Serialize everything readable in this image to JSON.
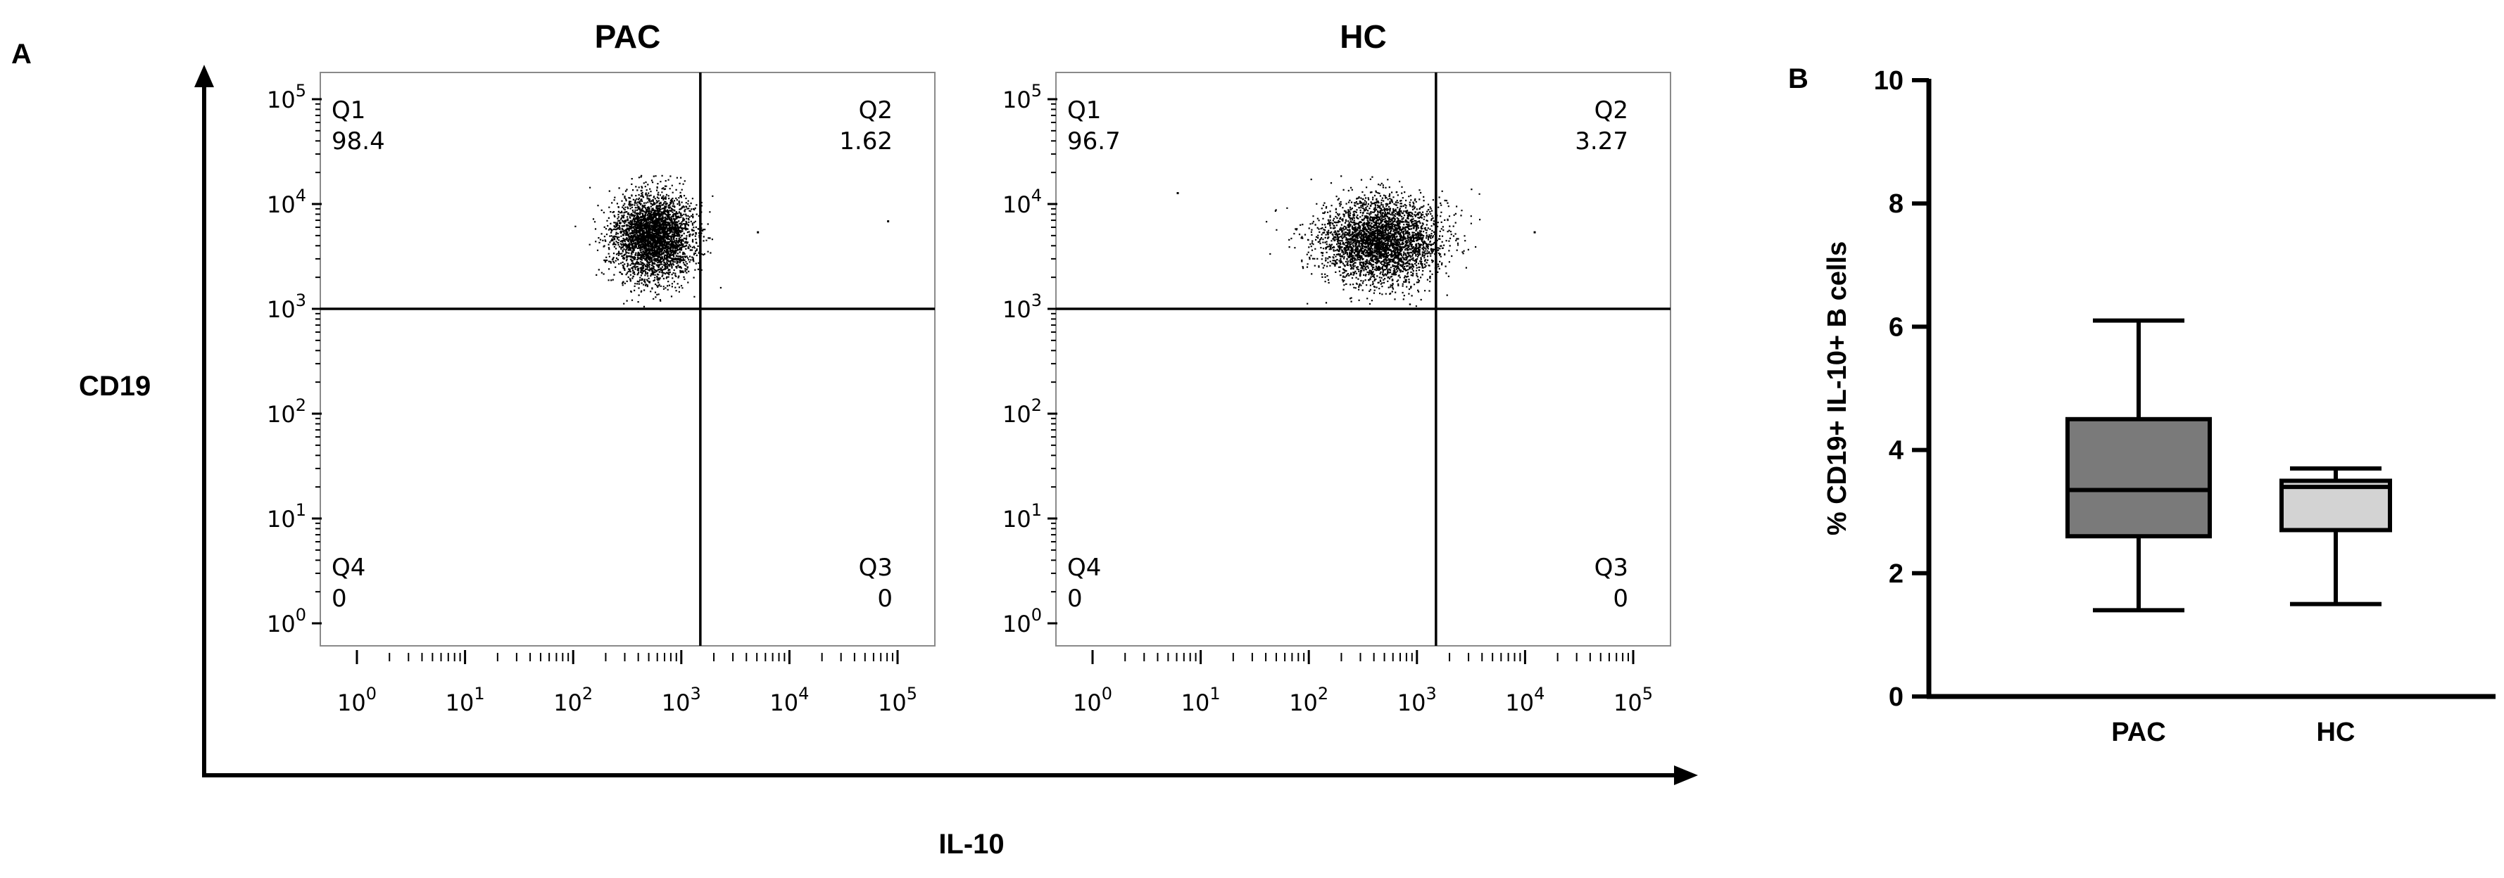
{
  "panels": {
    "a_label": "A",
    "b_label": "B",
    "shared_y_label": "CD19",
    "shared_x_label": "IL-10"
  },
  "chart_data": [
    {
      "type": "scatter",
      "title": "PAC",
      "xscale": "log",
      "yscale": "log",
      "xlim": [
        1,
        100000
      ],
      "ylim": [
        1,
        100000
      ],
      "x_ticks": [
        "10^0",
        "10^1",
        "10^2",
        "10^3",
        "10^4",
        "10^5"
      ],
      "y_ticks": [
        "10^0",
        "10^1",
        "10^2",
        "10^3",
        "10^4",
        "10^5"
      ],
      "gate": {
        "x": 1500,
        "y": 1000
      },
      "quadrants": [
        {
          "name": "Q1",
          "value": "98.4",
          "position": "top-left"
        },
        {
          "name": "Q2",
          "value": "1.62",
          "position": "top-right"
        },
        {
          "name": "Q3",
          "value": "0",
          "position": "bottom-right"
        },
        {
          "name": "Q4",
          "value": "0",
          "position": "bottom-left"
        }
      ],
      "population": {
        "x_center": 550,
        "y_center": 5000,
        "x_spread_decades": 0.18,
        "y_spread_decades": 0.2,
        "events": 3500,
        "outliers": [
          [
            80000,
            7000
          ],
          [
            5000,
            5500
          ]
        ]
      }
    },
    {
      "type": "scatter",
      "title": "HC",
      "xscale": "log",
      "yscale": "log",
      "xlim": [
        1,
        100000
      ],
      "ylim": [
        1,
        100000
      ],
      "x_ticks": [
        "10^0",
        "10^1",
        "10^2",
        "10^3",
        "10^4",
        "10^5"
      ],
      "y_ticks": [
        "10^0",
        "10^1",
        "10^2",
        "10^3",
        "10^4",
        "10^5"
      ],
      "gate": {
        "x": 1500,
        "y": 1000
      },
      "quadrants": [
        {
          "name": "Q1",
          "value": "96.7",
          "position": "top-left"
        },
        {
          "name": "Q2",
          "value": "3.27",
          "position": "top-right"
        },
        {
          "name": "Q3",
          "value": "0",
          "position": "bottom-right"
        },
        {
          "name": "Q4",
          "value": "0",
          "position": "bottom-left"
        }
      ],
      "population": {
        "x_center": 450,
        "y_center": 4500,
        "x_spread_decades": 0.28,
        "y_spread_decades": 0.2,
        "events": 3500,
        "outliers": [
          [
            6,
            13000
          ],
          [
            12000,
            5500
          ]
        ]
      }
    },
    {
      "type": "box",
      "title": "",
      "categories": [
        "PAC",
        "HC"
      ],
      "ylabel": "% CD19+ IL-10+ B cells",
      "ylim": [
        0,
        10
      ],
      "yticks": [
        0,
        2,
        4,
        6,
        8,
        10
      ],
      "boxes": [
        {
          "name": "PAC",
          "min": 1.4,
          "q1": 2.6,
          "median": 3.35,
          "q3": 4.5,
          "max": 6.1,
          "color": "#7a7a7a"
        },
        {
          "name": "HC",
          "min": 1.5,
          "q1": 2.7,
          "median": 3.4,
          "q3": 3.5,
          "max": 3.7,
          "color": "#d3d3d3"
        }
      ]
    }
  ]
}
